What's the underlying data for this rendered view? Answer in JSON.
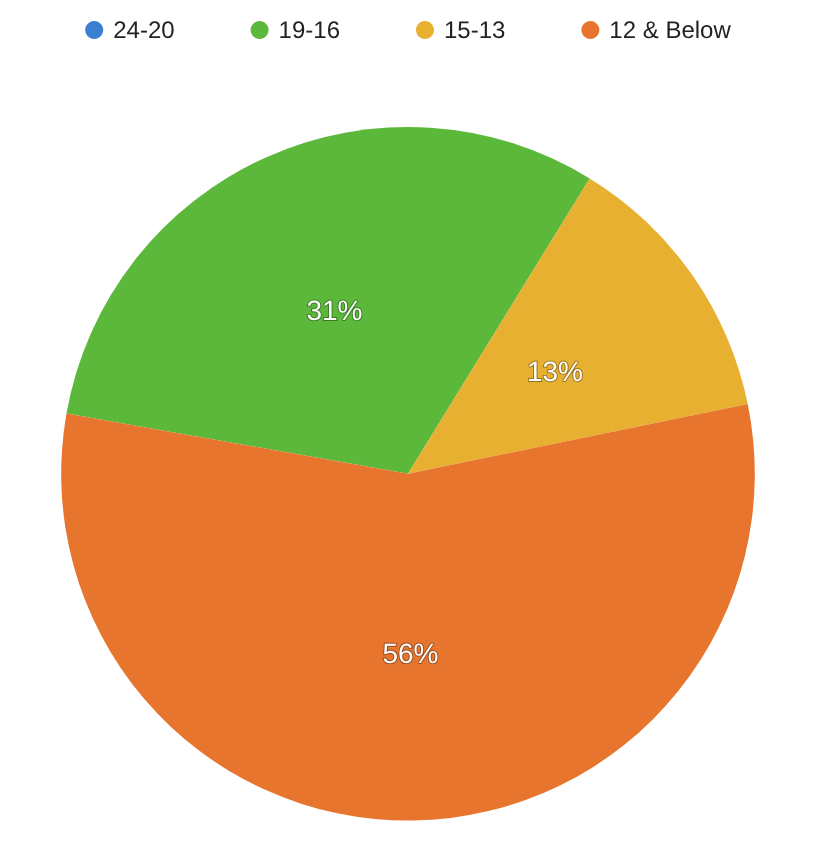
{
  "chart_data": {
    "type": "pie",
    "categories": [
      "24-20",
      "19-16",
      "15-13",
      "12 & Below"
    ],
    "values": [
      0,
      31,
      13,
      56
    ],
    "value_labels": [
      null,
      "31%",
      "13%",
      "56%"
    ],
    "colors": [
      "#3b7fd0",
      "#5cb83a",
      "#e8b030",
      "#e8752e"
    ],
    "legend": "top"
  }
}
